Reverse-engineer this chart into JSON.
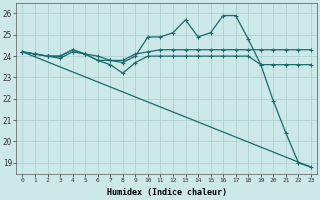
{
  "xlabel": "Humidex (Indice chaleur)",
  "background_color": "#cce8e8",
  "grid_color": "#b0d0d0",
  "line_color": "#1a6b6b",
  "xlim": [
    -0.5,
    23.5
  ],
  "ylim": [
    18.5,
    26.5
  ],
  "yticks": [
    19,
    20,
    21,
    22,
    23,
    24,
    25,
    26
  ],
  "xticks": [
    0,
    1,
    2,
    3,
    4,
    5,
    6,
    7,
    8,
    9,
    10,
    11,
    12,
    13,
    14,
    15,
    16,
    17,
    18,
    19,
    20,
    21,
    22,
    23
  ],
  "line1_x": [
    0,
    1,
    2,
    3,
    4,
    5,
    6,
    7,
    8,
    9,
    10,
    11,
    12,
    13,
    14,
    15,
    16,
    17,
    18,
    19,
    20,
    21,
    22,
    23
  ],
  "line1_y": [
    24.2,
    24.1,
    24.0,
    24.0,
    24.3,
    24.1,
    23.8,
    23.8,
    23.7,
    24.0,
    24.9,
    24.9,
    25.1,
    25.7,
    24.9,
    25.1,
    25.9,
    25.9,
    24.8,
    23.6,
    21.9,
    20.4,
    19.0,
    18.8
  ],
  "line2_x": [
    0,
    1,
    2,
    3,
    4,
    5,
    6,
    7,
    8,
    9,
    10,
    11,
    12,
    13,
    14,
    15,
    16,
    17,
    18,
    19,
    20,
    21,
    22,
    23
  ],
  "line2_y": [
    24.2,
    24.1,
    24.0,
    24.0,
    24.3,
    24.1,
    24.0,
    23.8,
    23.8,
    24.1,
    24.2,
    24.3,
    24.3,
    24.3,
    24.3,
    24.3,
    24.3,
    24.3,
    24.3,
    24.3,
    24.3,
    24.3,
    24.3,
    24.3
  ],
  "line3_x": [
    0,
    1,
    2,
    3,
    4,
    5,
    6,
    7,
    8,
    9,
    10,
    11,
    12,
    13,
    14,
    15,
    16,
    17,
    18,
    19,
    20,
    21,
    22,
    23
  ],
  "line3_y": [
    24.2,
    24.1,
    24.0,
    23.9,
    24.2,
    24.1,
    23.8,
    23.6,
    23.2,
    23.7,
    24.0,
    24.0,
    24.0,
    24.0,
    24.0,
    24.0,
    24.0,
    24.0,
    24.0,
    23.6,
    23.6,
    23.6,
    23.6,
    23.6
  ],
  "line4_x": [
    0,
    23
  ],
  "line4_y": [
    24.2,
    18.8
  ]
}
